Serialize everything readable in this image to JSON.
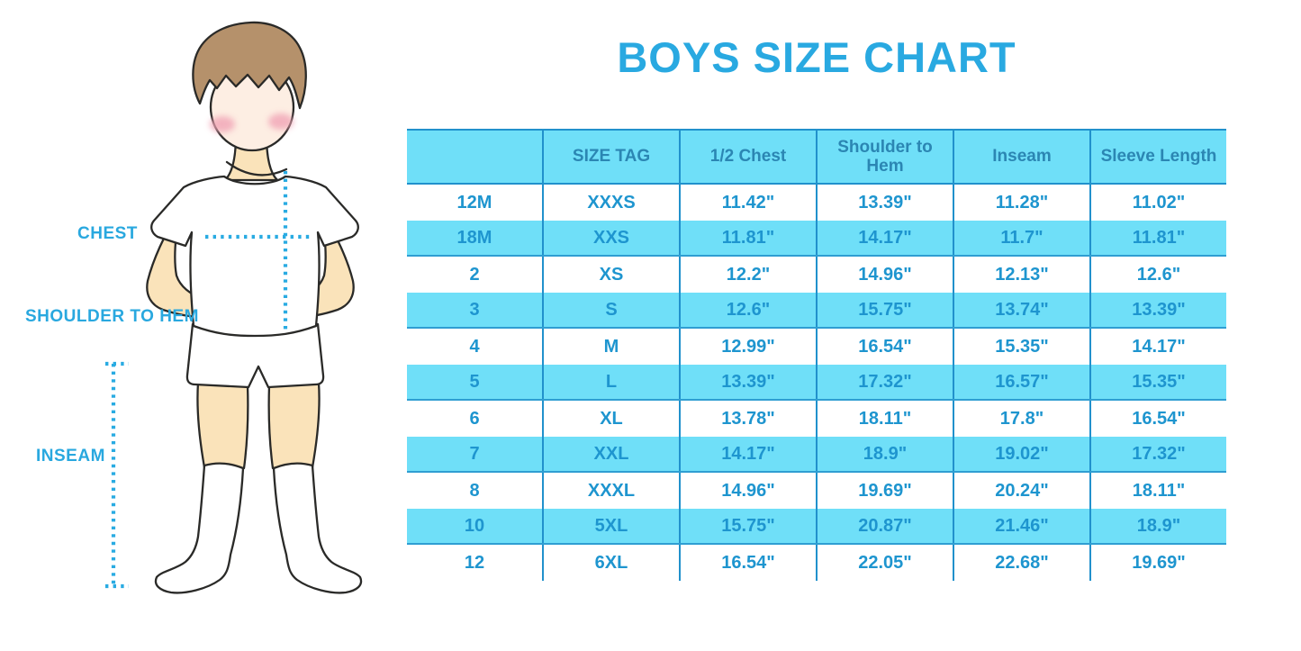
{
  "title": "BOYS SIZE CHART",
  "colors": {
    "title_blue": "#29a9e1",
    "stripe": "#6fdff8",
    "divider": "#2191cc",
    "row_edge": "#2f9ed2",
    "cell_text": "#1e95cf",
    "header_text": "#2b86b3",
    "label_text": "#29a8df",
    "dotted_line": "#29abe2",
    "skin": "#fae3ba",
    "face": "#fdeee3",
    "hair": "#b5916b",
    "outline": "#2a2a28",
    "cheek": "#f1a4b6"
  },
  "figure": {
    "labels": {
      "chest": "CHEST",
      "shoulder_to_hem": "SHOULDER TO HEM",
      "inseam": "INSEAM"
    }
  },
  "chart_data": {
    "type": "table",
    "title": "BOYS SIZE CHART",
    "columns": [
      "",
      "SIZE TAG",
      "1/2 Chest",
      "Shoulder to Hem",
      "Inseam",
      "Sleeve Length"
    ],
    "rows": [
      [
        "12M",
        "XXXS",
        "11.42\"",
        "13.39\"",
        "11.28\"",
        "11.02\""
      ],
      [
        "18M",
        "XXS",
        "11.81\"",
        "14.17\"",
        "11.7\"",
        "11.81\""
      ],
      [
        "2",
        "XS",
        "12.2\"",
        "14.96\"",
        "12.13\"",
        "12.6\""
      ],
      [
        "3",
        "S",
        "12.6\"",
        "15.75\"",
        "13.74\"",
        "13.39\""
      ],
      [
        "4",
        "M",
        "12.99\"",
        "16.54\"",
        "15.35\"",
        "14.17\""
      ],
      [
        "5",
        "L",
        "13.39\"",
        "17.32\"",
        "16.57\"",
        "15.35\""
      ],
      [
        "6",
        "XL",
        "13.78\"",
        "18.11\"",
        "17.8\"",
        "16.54\""
      ],
      [
        "7",
        "XXL",
        "14.17\"",
        "18.9\"",
        "19.02\"",
        "17.32\""
      ],
      [
        "8",
        "XXXL",
        "14.96\"",
        "19.69\"",
        "20.24\"",
        "18.11\""
      ],
      [
        "10",
        "5XL",
        "15.75\"",
        "20.87\"",
        "21.46\"",
        "18.9\""
      ],
      [
        "12",
        "6XL",
        "16.54\"",
        "22.05\"",
        "22.68\"",
        "19.69\""
      ]
    ],
    "stripe_pattern": "header and every second data row (18M,3,5,7,10) light blue; others white",
    "legend_position": "none",
    "grid": "vertical column dividers only"
  }
}
